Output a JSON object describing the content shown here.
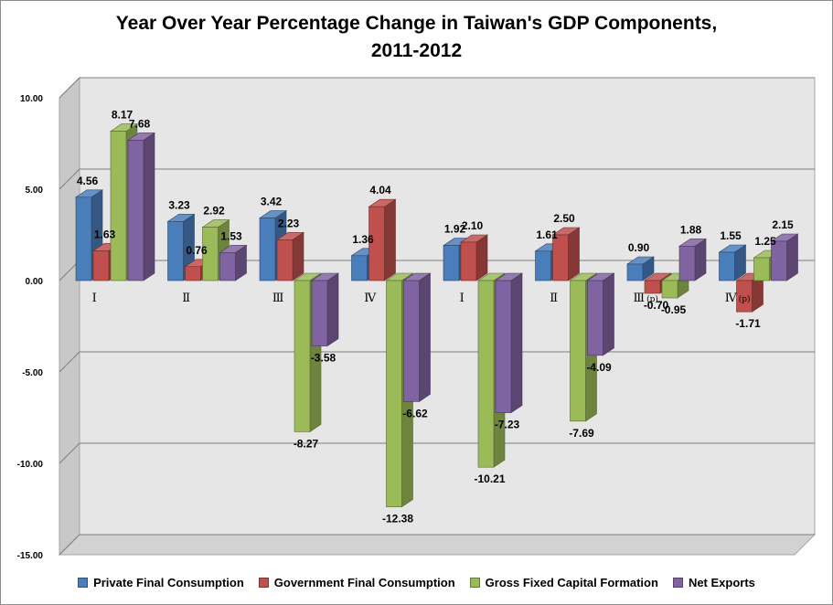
{
  "chart_data": {
    "type": "bar",
    "title_lines": [
      "Year Over Year Percentage Change in Taiwan's GDP Components,",
      "2011-2012"
    ],
    "y_ticks": [
      "10.00",
      "5.00",
      "0.00",
      "-5.00",
      "-10.00",
      "-15.00"
    ],
    "ylim": [
      -15,
      10
    ],
    "grid": true,
    "legend_position": "bottom",
    "categories": [
      {
        "label": "Ⅰ",
        "sub": ""
      },
      {
        "label": "Ⅱ",
        "sub": ""
      },
      {
        "label": "Ⅲ",
        "sub": ""
      },
      {
        "label": "Ⅳ",
        "sub": ""
      },
      {
        "label": "Ⅰ",
        "sub": ""
      },
      {
        "label": "Ⅱ",
        "sub": ""
      },
      {
        "label": "Ⅲ",
        "sub": "(p)"
      },
      {
        "label": "Ⅳ",
        "sub": "(p)"
      }
    ],
    "series": [
      {
        "name": "Private Final Consumption",
        "color": "#4a7ebb",
        "values": [
          4.56,
          3.23,
          3.42,
          1.36,
          1.92,
          1.61,
          0.9,
          1.55
        ],
        "labels": [
          "4.56",
          "3.23",
          "3.42",
          "1.36",
          "1.92",
          "1.61",
          "0.90",
          "1.55"
        ]
      },
      {
        "name": "Government Final Consumption",
        "color": "#c0504d",
        "values": [
          1.63,
          0.76,
          2.23,
          4.04,
          2.1,
          2.5,
          -0.7,
          -1.71
        ],
        "labels": [
          "1.63",
          "0.76",
          "2.23",
          "4.04",
          "2.10",
          "2.50",
          "-0.70",
          "-1.71"
        ]
      },
      {
        "name": "Gross Fixed Capital Formation",
        "color": "#9bbb59",
        "values": [
          8.17,
          2.92,
          -8.27,
          -12.38,
          -10.21,
          -7.69,
          -0.95,
          1.25
        ],
        "labels": [
          "8.17",
          "2.92",
          "-8.27",
          "-12.38",
          "-10.21",
          "-7.69",
          "-0.95",
          "1.25"
        ]
      },
      {
        "name": "Net Exports",
        "color": "#8064a2",
        "values": [
          7.68,
          1.53,
          -3.58,
          -6.62,
          -7.23,
          -4.09,
          1.88,
          2.15
        ],
        "labels": [
          "7.68",
          "1.53",
          "-3.58",
          "-6.62",
          "-7.23",
          "-4.09",
          "1.88",
          "2.15"
        ]
      }
    ]
  }
}
